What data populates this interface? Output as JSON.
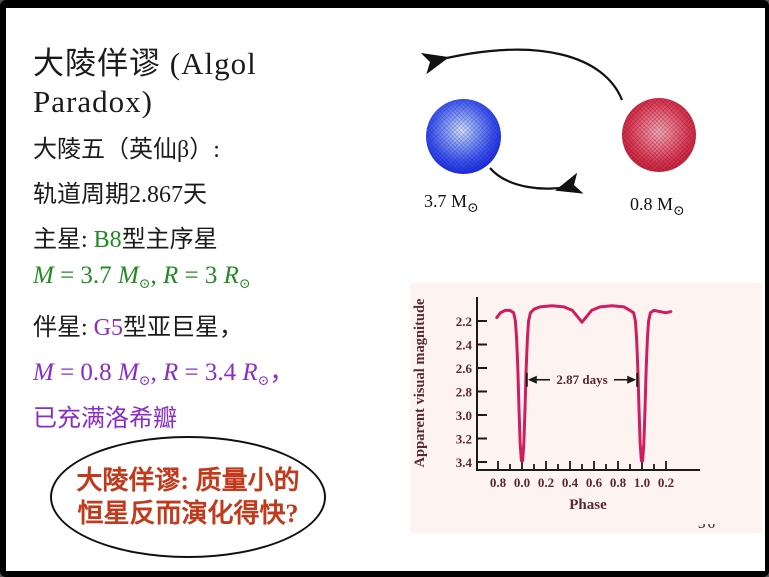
{
  "slide": {
    "title_line1": "大陵佯谬 (Algol",
    "title_line2": "Paradox)",
    "page_number": "36"
  },
  "body": {
    "l1": "大陵五（英仙β）:",
    "l2": "轨道周期2.867天",
    "l3": {
      "pre": "主星:  ",
      "hl": "B8",
      "post": "型主序星"
    },
    "l4": {
      "s0": "M",
      "s1": " = 3.7 ",
      "s2": "M",
      "s3": "⊙",
      "s4": ", ",
      "s5": "R",
      "s6": " = 3 ",
      "s7": "R",
      "s8": "⊙"
    },
    "l5": {
      "pre": "伴星:  ",
      "hl": "G5",
      "post": "型亚巨星，"
    },
    "l6": {
      "s0": "M",
      "s1": " = 0.8 ",
      "s2": "M",
      "s3": "⊙",
      "s4": ", ",
      "s5": "R",
      "s6": " = 3.4 ",
      "s7": "R",
      "s8": "⊙",
      "s9": "，"
    },
    "l7": "已充满洛希瓣"
  },
  "callout": {
    "line1": "大陵佯谬: 质量小的",
    "line2": "恒星反而演化得快?"
  },
  "binary_diagram": {
    "primary_mass": "3.7 M",
    "primary_sub": "⊙",
    "secondary_mass": "0.8 M",
    "secondary_sub": "⊙"
  },
  "colors": {
    "spectral_primary_green": "#218a21",
    "spectral_secondary_purple": "#8b2cc7",
    "callout_red": "#c23a1c",
    "curve_crimson": "#ce1e5e",
    "chart_text_maroon": "#5a2833",
    "primary_star_blue": "#1726e0",
    "secondary_star_red": "#c41f36"
  },
  "chart_data": {
    "type": "line",
    "title": "",
    "xlabel": "Phase",
    "ylabel": "Apparent visual magnitude",
    "x_tick_labels": [
      "0.8",
      "0.0",
      "0.2",
      "0.4",
      "0.6",
      "0.8",
      "1.0",
      "0.2"
    ],
    "x_tick_phases": [
      -0.2,
      0.0,
      0.2,
      0.4,
      0.6,
      0.8,
      1.0,
      1.2
    ],
    "y_ticks": [
      "2.2",
      "2.4",
      "2.6",
      "2.8",
      "3.0",
      "3.2",
      "3.4"
    ],
    "ylim": [
      2.05,
      3.45
    ],
    "y_axis_inverted": true,
    "grid": false,
    "annotation": {
      "label": "2.87 days",
      "from_phase": 0.04,
      "to_phase": 0.96,
      "at_magnitude": 2.7
    },
    "series": [
      {
        "name": "Algol apparent visual magnitude vs phase",
        "points": [
          [
            -0.21,
            2.17
          ],
          [
            -0.18,
            2.13
          ],
          [
            -0.14,
            2.11
          ],
          [
            -0.1,
            2.11
          ],
          [
            -0.07,
            2.13
          ],
          [
            -0.055,
            2.2
          ],
          [
            -0.045,
            2.35
          ],
          [
            -0.035,
            2.6
          ],
          [
            -0.025,
            2.95
          ],
          [
            -0.015,
            3.25
          ],
          [
            -0.005,
            3.39
          ],
          [
            0.005,
            3.39
          ],
          [
            0.015,
            3.25
          ],
          [
            0.025,
            2.95
          ],
          [
            0.035,
            2.6
          ],
          [
            0.045,
            2.35
          ],
          [
            0.055,
            2.2
          ],
          [
            0.07,
            2.13
          ],
          [
            0.1,
            2.1
          ],
          [
            0.15,
            2.08
          ],
          [
            0.25,
            2.07
          ],
          [
            0.35,
            2.08
          ],
          [
            0.42,
            2.11
          ],
          [
            0.46,
            2.16
          ],
          [
            0.5,
            2.21
          ],
          [
            0.54,
            2.16
          ],
          [
            0.58,
            2.11
          ],
          [
            0.65,
            2.08
          ],
          [
            0.75,
            2.07
          ],
          [
            0.85,
            2.08
          ],
          [
            0.9,
            2.11
          ],
          [
            0.93,
            2.13
          ],
          [
            0.945,
            2.2
          ],
          [
            0.955,
            2.35
          ],
          [
            0.965,
            2.6
          ],
          [
            0.975,
            2.95
          ],
          [
            0.985,
            3.25
          ],
          [
            0.995,
            3.39
          ],
          [
            1.005,
            3.39
          ],
          [
            1.015,
            3.25
          ],
          [
            1.025,
            2.95
          ],
          [
            1.035,
            2.6
          ],
          [
            1.045,
            2.35
          ],
          [
            1.055,
            2.2
          ],
          [
            1.07,
            2.13
          ],
          [
            1.1,
            2.11
          ],
          [
            1.15,
            2.12
          ],
          [
            1.2,
            2.13
          ],
          [
            1.24,
            2.12
          ]
        ]
      }
    ]
  }
}
